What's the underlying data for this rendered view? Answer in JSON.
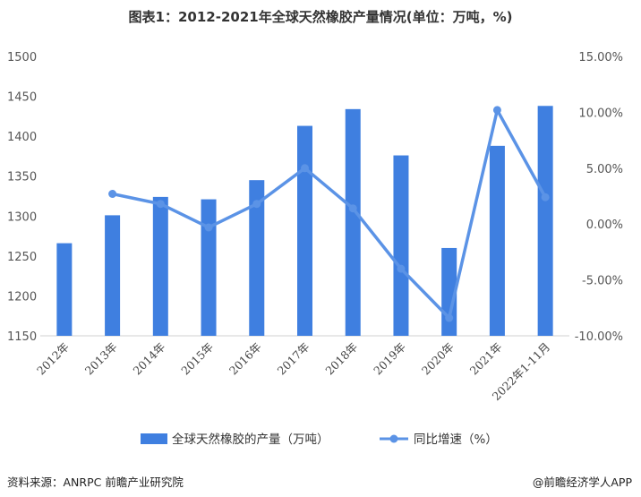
{
  "title": "图表1：2012-2021年全球天然橡胶产量情况(单位：万吨，%)",
  "source": "资料来源：ANRPC 前瞻产业研究院",
  "credit": "@前瞻经济学人APP",
  "colors": {
    "bar": "#3f7fe0",
    "line": "#5b93e6"
  },
  "chart_data": {
    "type": "bar+line",
    "categories": [
      "2012年",
      "2013年",
      "2014年",
      "2015年",
      "2016年",
      "2017年",
      "2018年",
      "2019年",
      "2020年",
      "2021年",
      "2022年1-11月"
    ],
    "series": [
      {
        "name": "全球天然橡胶的产量（万吨）",
        "type": "bar",
        "axis": "left",
        "values": [
          1266,
          1301,
          1324,
          1321,
          1345,
          1413,
          1434,
          1376,
          1260,
          1388,
          1438
        ]
      },
      {
        "name": "同比增速（%）",
        "type": "line",
        "axis": "right",
        "values": [
          null,
          2.7,
          1.8,
          -0.3,
          1.8,
          5.0,
          1.4,
          -4.0,
          -8.4,
          10.2,
          2.4
        ]
      }
    ],
    "ylim_left": [
      1150,
      1500
    ],
    "yticks_left": [
      "1150",
      "1200",
      "1250",
      "1300",
      "1350",
      "1400",
      "1450",
      "1500"
    ],
    "ylim_right": [
      -10,
      15
    ],
    "yticks_right": [
      "-10.00%",
      "-5.00%",
      "0.00%",
      "5.00%",
      "10.00%",
      "15.00%"
    ],
    "legend": "bottom"
  }
}
